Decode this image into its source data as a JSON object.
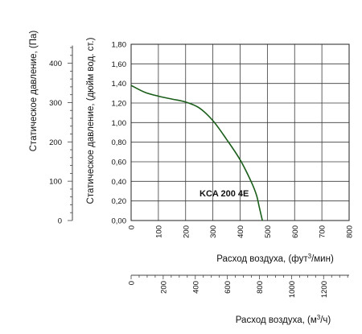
{
  "chart_data": {
    "type": "line",
    "series": [
      {
        "name": "KCA 200 4E",
        "color": "#1a5e1a",
        "x": [
          0,
          50,
          100,
          150,
          200,
          250,
          300,
          350,
          400,
          440,
          460,
          470,
          480,
          482
        ],
        "y": [
          1.38,
          1.31,
          1.27,
          1.24,
          1.21,
          1.15,
          1.02,
          0.83,
          0.62,
          0.4,
          0.26,
          0.14,
          0.02,
          0.0
        ]
      }
    ],
    "axes": {
      "x_cfm": {
        "label_main": "Расход воздуха, (фут",
        "label_sup": "3",
        "label_end": "/мин)",
        "range": [
          0,
          800
        ],
        "ticks": [
          "0",
          "100",
          "200",
          "300",
          "400",
          "500",
          "600",
          "700",
          "800"
        ]
      },
      "x_m3h": {
        "label_main": "Расход воздуха, (м",
        "label_sup": "3",
        "label_end": "/ч)",
        "range": [
          0,
          1359
        ],
        "ticks": [
          "0",
          "200",
          "400",
          "600",
          "800",
          "1000",
          "1200"
        ]
      },
      "y_inwg": {
        "label": "Статическое давление, (дюйм вод. ст.)",
        "range": [
          0,
          1.8
        ],
        "ticks": [
          "0,00",
          "0,20",
          "0,40",
          "0,60",
          "0,80",
          "1,00",
          "1,20",
          "1,40",
          "1,60",
          "1,80"
        ]
      },
      "y_pa": {
        "label": "Статическое давление, (Па)",
        "range": [
          0,
          448.3
        ],
        "ticks": [
          "0",
          "100",
          "200",
          "300",
          "400"
        ]
      }
    },
    "grid": true
  }
}
